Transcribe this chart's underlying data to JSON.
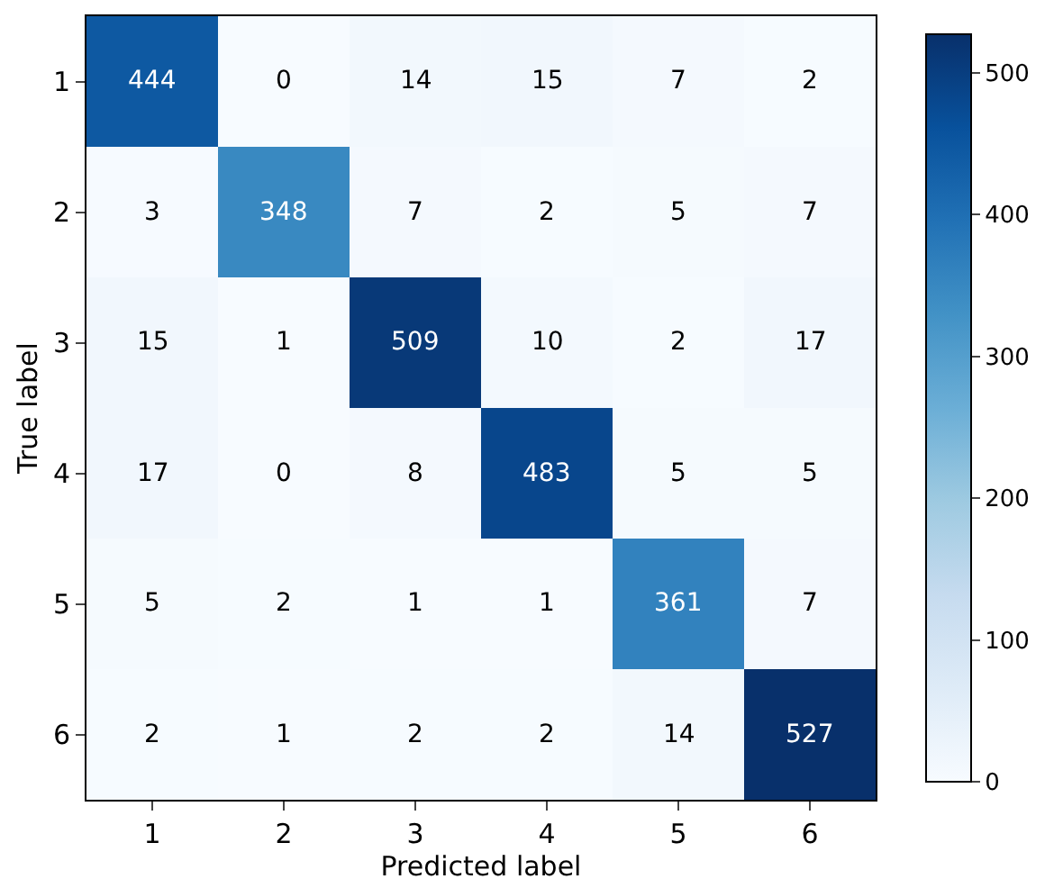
{
  "chart_data": {
    "type": "heatmap",
    "xlabel": "Predicted label",
    "ylabel": "True label",
    "categories": [
      "1",
      "2",
      "3",
      "4",
      "5",
      "6"
    ],
    "y_categories": [
      "1",
      "2",
      "3",
      "4",
      "5",
      "6"
    ],
    "cells": [
      [
        444,
        0,
        14,
        15,
        7,
        2
      ],
      [
        3,
        348,
        7,
        2,
        5,
        7
      ],
      [
        15,
        1,
        509,
        10,
        2,
        17
      ],
      [
        17,
        0,
        8,
        483,
        5,
        5
      ],
      [
        5,
        2,
        1,
        1,
        361,
        7
      ],
      [
        2,
        1,
        2,
        2,
        14,
        527
      ]
    ],
    "clim": [
      0,
      527
    ],
    "cticks": [
      0,
      100,
      200,
      300,
      400,
      500
    ],
    "data_labels": true
  }
}
